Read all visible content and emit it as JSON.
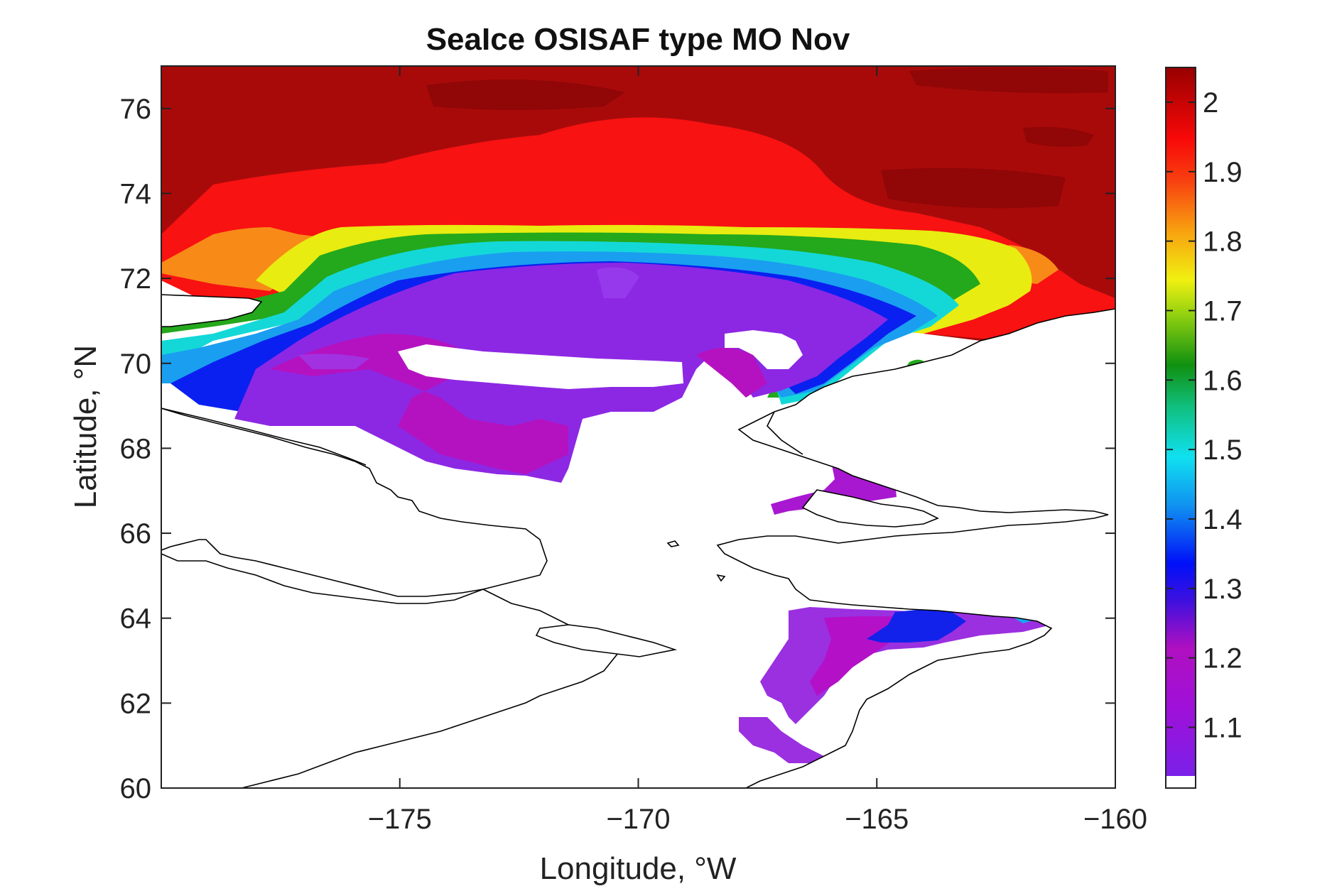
{
  "chart_data": {
    "type": "heatmap",
    "title": "SeaIce OSISAF type MO Nov",
    "xlabel": "Longitude, °W",
    "ylabel": "Latitude, °N",
    "xlim": [
      -180,
      -160
    ],
    "ylim": [
      60,
      77
    ],
    "xticks": [
      -175,
      -170,
      -165,
      -160
    ],
    "yticks": [
      60,
      62,
      64,
      66,
      68,
      70,
      72,
      74,
      76
    ],
    "colorbar": {
      "min": 1.03,
      "max": 2.05,
      "ticks": [
        1.1,
        1.2,
        1.3,
        1.4,
        1.5,
        1.6,
        1.7,
        1.8,
        1.9,
        2
      ],
      "colormap": "jet-like (purple to dark red)",
      "nan_color": "#ffffff"
    },
    "colors": {
      "level_1_1": "#8a2be2",
      "level_1_2": "#b010c8",
      "level_1_3": "#0a1cf0",
      "level_1_4": "#1aa0f0",
      "level_1_5": "#10e0d0",
      "level_1_6": "#18a018",
      "level_1_7": "#b8e010",
      "level_1_8": "#f8a018",
      "level_1_9": "#f81010",
      "level_2_0": "#a80808"
    },
    "regions": [
      {
        "name": "outer-arctic",
        "value": 2.0
      },
      {
        "name": "north-core",
        "value": 1.9
      },
      {
        "name": "ice-edge-orange",
        "value": 1.8
      },
      {
        "name": "ice-edge-yellow",
        "value": 1.75
      },
      {
        "name": "ice-edge-green",
        "value": 1.6
      },
      {
        "name": "ice-edge-cyan",
        "value": 1.5
      },
      {
        "name": "ice-edge-blue",
        "value": 1.3
      },
      {
        "name": "chukchi-interior",
        "value": 1.15
      },
      {
        "name": "bering-strait-patch",
        "value": 1.12
      },
      {
        "name": "norton-sound",
        "value": 1.2
      }
    ]
  }
}
